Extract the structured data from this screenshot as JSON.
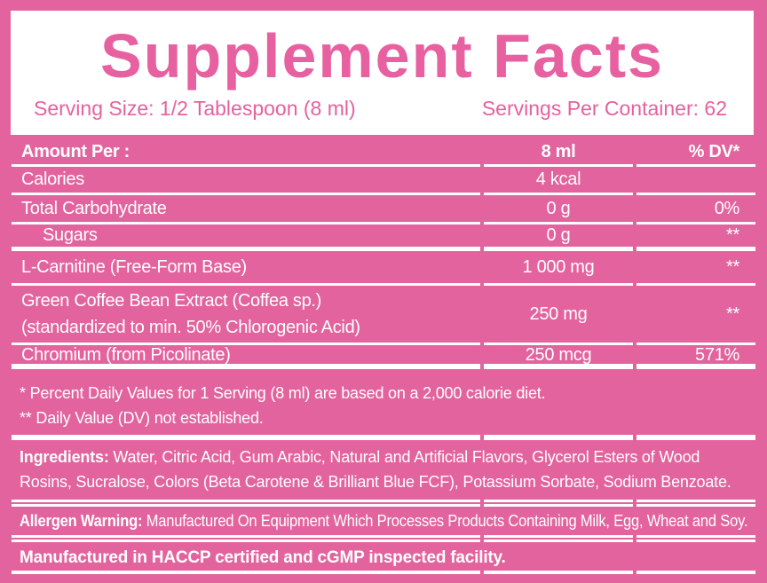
{
  "colors": {
    "pink": "#e2639d",
    "title_pink": "#e7609f",
    "white": "#ffffff"
  },
  "header": {
    "title": "Supplement Facts",
    "serving_size": "Serving Size: 1/2 Tablespoon (8 ml)",
    "servings_per_container": "Servings Per Container: 62"
  },
  "table": {
    "header": {
      "label": "Amount Per :",
      "amount": "8 ml",
      "dv": "% DV*"
    },
    "rows": [
      {
        "name": "Calories",
        "amount": "4 kcal",
        "dv": ""
      },
      {
        "name": "Total Carbohydrate",
        "amount": "0 g",
        "dv": "0%"
      },
      {
        "name": "Sugars",
        "amount": "0 g",
        "dv": "**"
      },
      {
        "name": "L-Carnitine (Free-Form Base)",
        "amount": "1 000 mg",
        "dv": "**"
      },
      {
        "name_line1": "Green Coffee Bean Extract (Coffea sp.)",
        "name_line2": "(standardized to min. 50% Chlorogenic Acid)",
        "amount": "250 mg",
        "dv": "**"
      },
      {
        "name": "Chromium (from Picolinate)",
        "amount": "250 mcg",
        "dv": "571%"
      }
    ]
  },
  "footnotes": {
    "dv_note": "* Percent Daily Values for 1 Serving (8 ml) are based on a 2,000 calorie diet.",
    "not_established_note": "** Daily Value (DV) not established."
  },
  "ingredients": {
    "label": "Ingredients:",
    "text": " Water, Citric Acid, Gum Arabic, Natural and Artificial Flavors, Glycerol Esters of Wood Rosins, Sucralose, Colors (Beta Carotene & Brilliant Blue FCF), Potassium Sorbate, Sodium Benzoate."
  },
  "allergen": {
    "label": "Allergen Warning:",
    "text": " Manufactured On Equipment Which Processes Products Containing Milk, Egg, Wheat and Soy."
  },
  "facility_note": "Manufactured in HACCP certified and cGMP inspected facility."
}
